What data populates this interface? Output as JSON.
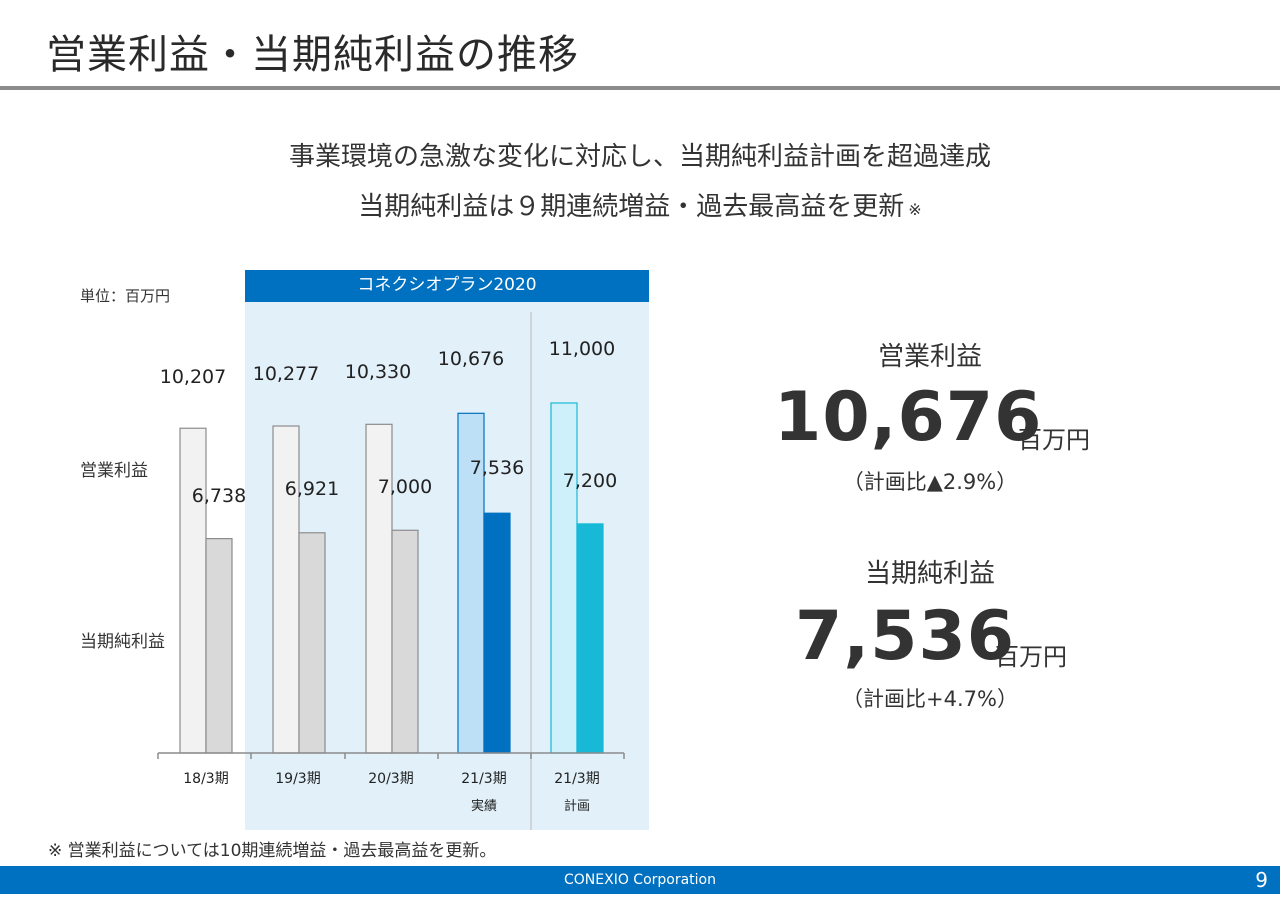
{
  "slide": {
    "title": "営業利益・当期純利益の推移",
    "headline_1": "事業環境の急激な変化に対応し、当期純利益計画を超過達成",
    "headline_2": "当期純利益は９期連続増益・過去最高益を更新",
    "headline_mark": "※",
    "plan_label": "コネクシオプラン2020",
    "unit_label": "単位：百万円",
    "footnote": "※ 営業利益については10期連続増益・過去最高益を更新。",
    "footer_company": "CONEXIO Corporation",
    "page_number": "9"
  },
  "side_labels": {
    "operating": "営業利益",
    "net": "当期純利益"
  },
  "kpi": {
    "operating_label": "営業利益",
    "operating_value": "10,676",
    "operating_unit": "百万円",
    "operating_note": "（計画比▲2.9%）",
    "net_label": "当期純利益",
    "net_value": "7,536",
    "net_unit": "百万円",
    "net_note": "（計画比+4.7%）"
  },
  "chart_data": {
    "type": "bar",
    "categories": [
      "18/3期",
      "19/3期",
      "20/3期",
      "21/3期",
      "21/3期"
    ],
    "sub_categories": [
      "",
      "",
      "",
      "実績",
      "計画"
    ],
    "series": [
      {
        "name": "営業利益",
        "values": [
          10207,
          10277,
          10330,
          10676,
          11000
        ],
        "labels": [
          "10,207",
          "10,277",
          "10,330",
          "10,676",
          "11,000"
        ],
        "colors": [
          "#f2f2f2",
          "#f2f2f2",
          "#f2f2f2",
          "#bde0f7",
          "#cdf0fa"
        ],
        "strokes": [
          "#8c8c8c",
          "#8c8c8c",
          "#8c8c8c",
          "#0070c0",
          "#17b9d6"
        ]
      },
      {
        "name": "当期純利益",
        "values": [
          6738,
          6921,
          7000,
          7536,
          7200
        ],
        "labels": [
          "6,738",
          "6,921",
          "7,000",
          "7,536",
          "7,200"
        ],
        "colors": [
          "#d9d9d9",
          "#d9d9d9",
          "#d9d9d9",
          "#0070c0",
          "#17b9d6"
        ],
        "strokes": [
          "#8c8c8c",
          "#8c8c8c",
          "#8c8c8c",
          "#0070c0",
          "#17b9d6"
        ]
      }
    ],
    "ylim": [
      0,
      11000
    ],
    "grid": false,
    "colors": {
      "axis": "#8c8c8c",
      "accent": "#0070c0",
      "plan": "#17b9d6"
    }
  }
}
